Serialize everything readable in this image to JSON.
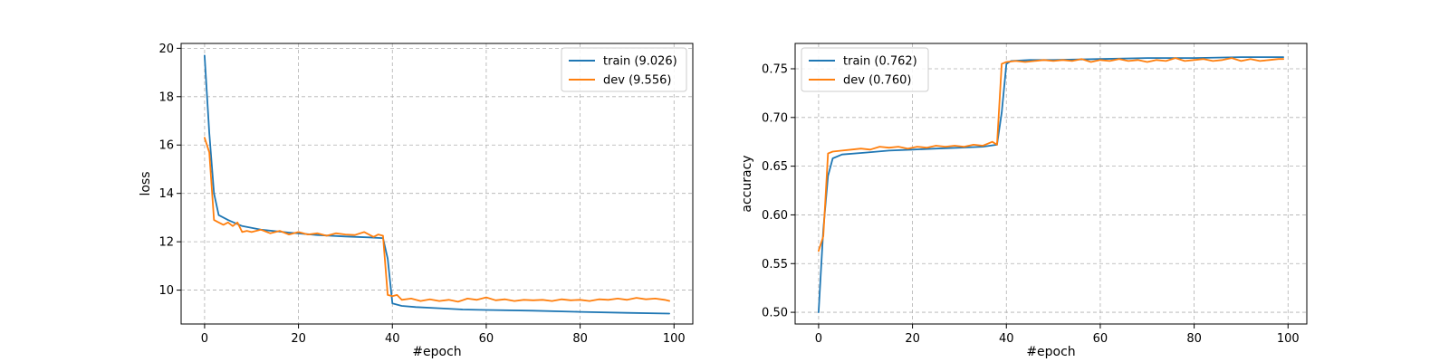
{
  "colors": {
    "train": "#1f77b4",
    "dev": "#ff7f0e"
  },
  "chart_data": [
    {
      "type": "line",
      "title": "",
      "xlabel": "#epoch",
      "ylabel": "loss",
      "xlim": [
        -5,
        104
      ],
      "ylim": [
        8.6,
        20.2
      ],
      "xticks": [
        0,
        20,
        40,
        60,
        80,
        100
      ],
      "yticks": [
        10,
        12,
        14,
        16,
        18,
        20
      ],
      "xtick_labels": [
        "0",
        "20",
        "40",
        "60",
        "80",
        "100"
      ],
      "ytick_labels": [
        "10",
        "12",
        "14",
        "16",
        "18",
        "20"
      ],
      "grid": true,
      "legend_position": "upper right",
      "series": [
        {
          "name": "train (9.026)",
          "color_key": "train",
          "points": [
            [
              0,
              19.7
            ],
            [
              1,
              16.5
            ],
            [
              2,
              14.0
            ],
            [
              3,
              13.1
            ],
            [
              5,
              12.9
            ],
            [
              8,
              12.65
            ],
            [
              12,
              12.5
            ],
            [
              18,
              12.38
            ],
            [
              24,
              12.28
            ],
            [
              30,
              12.22
            ],
            [
              35,
              12.18
            ],
            [
              37,
              12.16
            ],
            [
              38,
              12.15
            ],
            [
              39,
              11.3
            ],
            [
              40,
              9.45
            ],
            [
              42,
              9.35
            ],
            [
              45,
              9.3
            ],
            [
              50,
              9.25
            ],
            [
              55,
              9.2
            ],
            [
              60,
              9.18
            ],
            [
              70,
              9.15
            ],
            [
              80,
              9.1
            ],
            [
              90,
              9.06
            ],
            [
              99,
              9.03
            ]
          ]
        },
        {
          "name": "dev (9.556)",
          "color_key": "dev",
          "points": [
            [
              0,
              16.3
            ],
            [
              1,
              15.7
            ],
            [
              2,
              12.9
            ],
            [
              3,
              12.8
            ],
            [
              4,
              12.7
            ],
            [
              5,
              12.8
            ],
            [
              6,
              12.65
            ],
            [
              7,
              12.8
            ],
            [
              8,
              12.4
            ],
            [
              9,
              12.45
            ],
            [
              10,
              12.4
            ],
            [
              12,
              12.5
            ],
            [
              14,
              12.35
            ],
            [
              16,
              12.45
            ],
            [
              18,
              12.3
            ],
            [
              20,
              12.4
            ],
            [
              22,
              12.3
            ],
            [
              24,
              12.35
            ],
            [
              26,
              12.25
            ],
            [
              28,
              12.35
            ],
            [
              30,
              12.3
            ],
            [
              32,
              12.28
            ],
            [
              34,
              12.4
            ],
            [
              36,
              12.2
            ],
            [
              37,
              12.3
            ],
            [
              38,
              12.25
            ],
            [
              39,
              9.8
            ],
            [
              40,
              9.75
            ],
            [
              41,
              9.8
            ],
            [
              42,
              9.6
            ],
            [
              44,
              9.65
            ],
            [
              46,
              9.55
            ],
            [
              48,
              9.62
            ],
            [
              50,
              9.55
            ],
            [
              52,
              9.6
            ],
            [
              54,
              9.52
            ],
            [
              56,
              9.65
            ],
            [
              58,
              9.6
            ],
            [
              60,
              9.7
            ],
            [
              62,
              9.58
            ],
            [
              64,
              9.62
            ],
            [
              66,
              9.55
            ],
            [
              68,
              9.6
            ],
            [
              70,
              9.58
            ],
            [
              72,
              9.6
            ],
            [
              74,
              9.55
            ],
            [
              76,
              9.62
            ],
            [
              78,
              9.58
            ],
            [
              80,
              9.6
            ],
            [
              82,
              9.55
            ],
            [
              84,
              9.62
            ],
            [
              86,
              9.6
            ],
            [
              88,
              9.65
            ],
            [
              90,
              9.6
            ],
            [
              92,
              9.68
            ],
            [
              94,
              9.62
            ],
            [
              96,
              9.65
            ],
            [
              98,
              9.6
            ],
            [
              99,
              9.556
            ]
          ]
        }
      ]
    },
    {
      "type": "line",
      "title": "",
      "xlabel": "#epoch",
      "ylabel": "accuracy",
      "xlim": [
        -5,
        104
      ],
      "ylim": [
        0.488,
        0.776
      ],
      "xticks": [
        0,
        20,
        40,
        60,
        80,
        100
      ],
      "yticks": [
        0.5,
        0.55,
        0.6,
        0.65,
        0.7,
        0.75
      ],
      "xtick_labels": [
        "0",
        "20",
        "40",
        "60",
        "80",
        "100"
      ],
      "ytick_labels": [
        "0.50",
        "0.55",
        "0.60",
        "0.65",
        "0.70",
        "0.75"
      ],
      "grid": true,
      "legend_position": "upper left",
      "series": [
        {
          "name": "train (0.762)",
          "color_key": "train",
          "points": [
            [
              0,
              0.5
            ],
            [
              1,
              0.585
            ],
            [
              2,
              0.64
            ],
            [
              3,
              0.658
            ],
            [
              5,
              0.662
            ],
            [
              10,
              0.664
            ],
            [
              15,
              0.666
            ],
            [
              20,
              0.667
            ],
            [
              25,
              0.668
            ],
            [
              30,
              0.669
            ],
            [
              35,
              0.67
            ],
            [
              38,
              0.672
            ],
            [
              39,
              0.705
            ],
            [
              40,
              0.755
            ],
            [
              41,
              0.758
            ],
            [
              45,
              0.759
            ],
            [
              50,
              0.759
            ],
            [
              60,
              0.76
            ],
            [
              70,
              0.761
            ],
            [
              80,
              0.761
            ],
            [
              90,
              0.762
            ],
            [
              99,
              0.762
            ]
          ]
        },
        {
          "name": "dev (0.760)",
          "color_key": "dev",
          "points": [
            [
              0,
              0.563
            ],
            [
              1,
              0.578
            ],
            [
              2,
              0.663
            ],
            [
              3,
              0.665
            ],
            [
              5,
              0.666
            ],
            [
              7,
              0.667
            ],
            [
              9,
              0.668
            ],
            [
              11,
              0.667
            ],
            [
              13,
              0.67
            ],
            [
              15,
              0.669
            ],
            [
              17,
              0.67
            ],
            [
              19,
              0.668
            ],
            [
              21,
              0.67
            ],
            [
              23,
              0.669
            ],
            [
              25,
              0.671
            ],
            [
              27,
              0.67
            ],
            [
              29,
              0.671
            ],
            [
              31,
              0.67
            ],
            [
              33,
              0.672
            ],
            [
              35,
              0.671
            ],
            [
              37,
              0.675
            ],
            [
              38,
              0.672
            ],
            [
              39,
              0.755
            ],
            [
              40,
              0.757
            ],
            [
              42,
              0.758
            ],
            [
              44,
              0.757
            ],
            [
              46,
              0.758
            ],
            [
              48,
              0.759
            ],
            [
              50,
              0.758
            ],
            [
              52,
              0.759
            ],
            [
              54,
              0.758
            ],
            [
              56,
              0.76
            ],
            [
              58,
              0.757
            ],
            [
              60,
              0.759
            ],
            [
              62,
              0.758
            ],
            [
              64,
              0.76
            ],
            [
              66,
              0.758
            ],
            [
              68,
              0.759
            ],
            [
              70,
              0.757
            ],
            [
              72,
              0.759
            ],
            [
              74,
              0.758
            ],
            [
              76,
              0.761
            ],
            [
              78,
              0.758
            ],
            [
              80,
              0.759
            ],
            [
              82,
              0.76
            ],
            [
              84,
              0.758
            ],
            [
              86,
              0.759
            ],
            [
              88,
              0.761
            ],
            [
              90,
              0.758
            ],
            [
              92,
              0.76
            ],
            [
              94,
              0.758
            ],
            [
              96,
              0.759
            ],
            [
              98,
              0.76
            ],
            [
              99,
              0.76
            ]
          ]
        }
      ]
    }
  ]
}
